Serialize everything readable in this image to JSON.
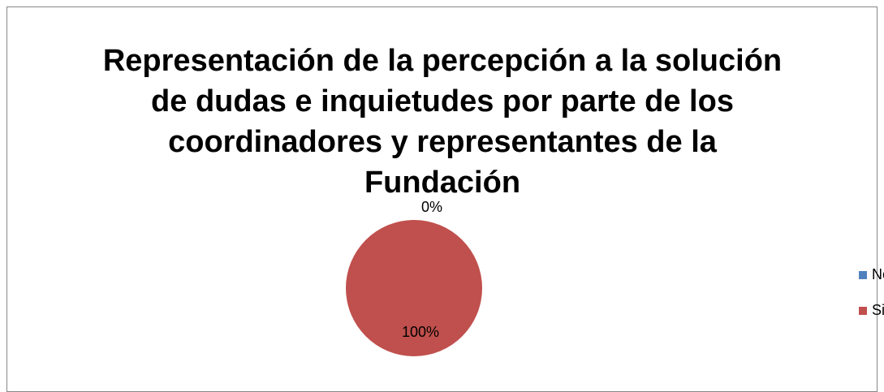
{
  "chart_data": {
    "type": "pie",
    "title": "Representación de la percepción a la solución de dudas e inquietudes por parte de los coordinadores y representantes de la Fundación",
    "categories": [
      "No",
      "Si"
    ],
    "values": [
      0,
      100
    ],
    "value_labels": [
      "0%",
      "100%"
    ],
    "colors": [
      "#4f81bd",
      "#c0504d"
    ],
    "legend": "right"
  }
}
